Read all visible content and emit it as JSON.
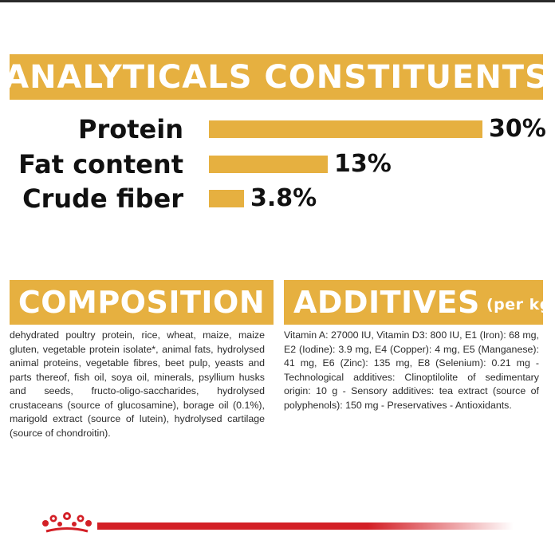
{
  "headings": {
    "analytics": "ANALYTICALS CONSTITUENTS",
    "composition": "COMPOSITION",
    "additives": "ADDITIVES",
    "additives_sub": "(per kg)"
  },
  "chart_data": {
    "type": "bar",
    "orientation": "horizontal",
    "categories": [
      "Protein",
      "Fat content",
      "Crude fiber"
    ],
    "values": [
      30,
      13,
      3.8
    ],
    "value_labels": [
      "30%",
      "13%",
      "3.8%"
    ],
    "unit": "%",
    "xlim": [
      0,
      30
    ],
    "grid": false,
    "bar_color": "#e6b040"
  },
  "composition_text": "dehydrated poultry protein, rice, wheat, maize, maize gluten, vegetable protein isolate*, animal fats, hydrolysed animal proteins, vegetable fibres, beet pulp, yeasts and parts thereof, fish oil, soya oil, minerals, psyllium husks and seeds, fructo-oligo-saccharides, hydrolysed crustaceans (source of glucosamine), borage oil (0.1%), marigold extract (source of lutein), hydrolysed cartilage (source of chondroitin).",
  "additives_text": "Vitamin A: 27000 IU, Vitamin D3: 800 IU, E1 (Iron): 68 mg, E2 (Iodine): 3.9 mg, E4 (Copper): 4 mg, E5 (Manganese): 41 mg, E6 (Zinc): 135 mg, E8 (Selenium): 0.21 mg - Technological additives: Clinoptilolite of sedimentary origin: 10 g - Sensory additives: tea extract (source of polyphenols): 150 mg - Preservatives - Antioxidants.",
  "colors": {
    "accent": "#e6b040",
    "brand_red": "#d31f26",
    "text": "#111111"
  },
  "icons": {
    "logo": "crown-icon"
  }
}
